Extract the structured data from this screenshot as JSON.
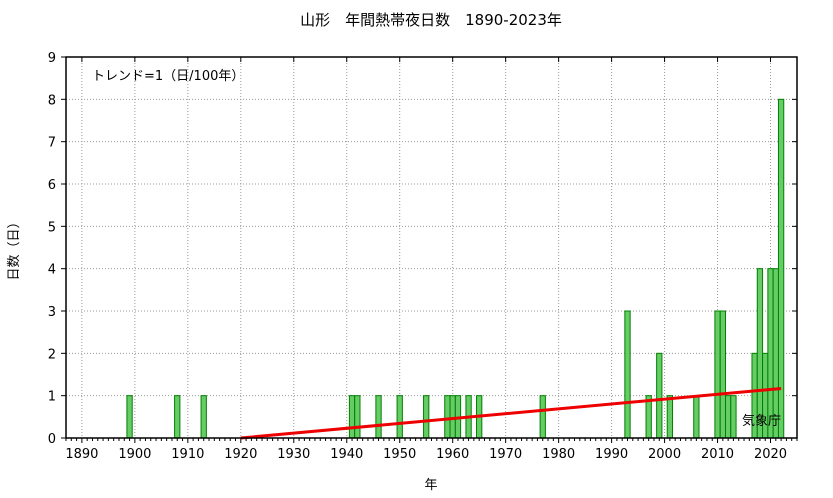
{
  "chart_data": {
    "type": "bar",
    "title": "山形　年間熱帯夜日数　1890-2023年",
    "xlabel": "年",
    "ylabel": "日数（日）",
    "xlim": [
      1887,
      2025
    ],
    "ylim": [
      0,
      9
    ],
    "x_ticks": [
      1890,
      1900,
      1910,
      1920,
      1930,
      1940,
      1950,
      1960,
      1970,
      1980,
      1990,
      2000,
      2010,
      2020
    ],
    "y_ticks": [
      0,
      1,
      2,
      3,
      4,
      5,
      6,
      7,
      8,
      9
    ],
    "grid": true,
    "bar_color": "#66cc66",
    "bar_edge_color": "#008000",
    "trend_color": "#ee0000",
    "trend_annotation": "トレンド=1（日/100年）",
    "source_label": "気象庁",
    "bars": [
      {
        "x": 1899,
        "y": 1
      },
      {
        "x": 1908,
        "y": 1
      },
      {
        "x": 1913,
        "y": 1
      },
      {
        "x": 1941,
        "y": 1
      },
      {
        "x": 1942,
        "y": 1
      },
      {
        "x": 1946,
        "y": 1
      },
      {
        "x": 1950,
        "y": 1
      },
      {
        "x": 1955,
        "y": 1
      },
      {
        "x": 1959,
        "y": 1
      },
      {
        "x": 1960,
        "y": 1
      },
      {
        "x": 1961,
        "y": 1
      },
      {
        "x": 1963,
        "y": 1
      },
      {
        "x": 1965,
        "y": 1
      },
      {
        "x": 1977,
        "y": 1
      },
      {
        "x": 1993,
        "y": 3
      },
      {
        "x": 1997,
        "y": 1
      },
      {
        "x": 1999,
        "y": 2
      },
      {
        "x": 2001,
        "y": 1
      },
      {
        "x": 2006,
        "y": 1
      },
      {
        "x": 2010,
        "y": 3
      },
      {
        "x": 2011,
        "y": 3
      },
      {
        "x": 2012,
        "y": 1
      },
      {
        "x": 2013,
        "y": 1
      },
      {
        "x": 2017,
        "y": 2
      },
      {
        "x": 2018,
        "y": 4
      },
      {
        "x": 2019,
        "y": 2
      },
      {
        "x": 2020,
        "y": 4
      },
      {
        "x": 2021,
        "y": 4
      },
      {
        "x": 2022,
        "y": 8
      }
    ],
    "trend": {
      "x": [
        1920,
        2022
      ],
      "y": [
        0,
        1.17
      ]
    }
  }
}
